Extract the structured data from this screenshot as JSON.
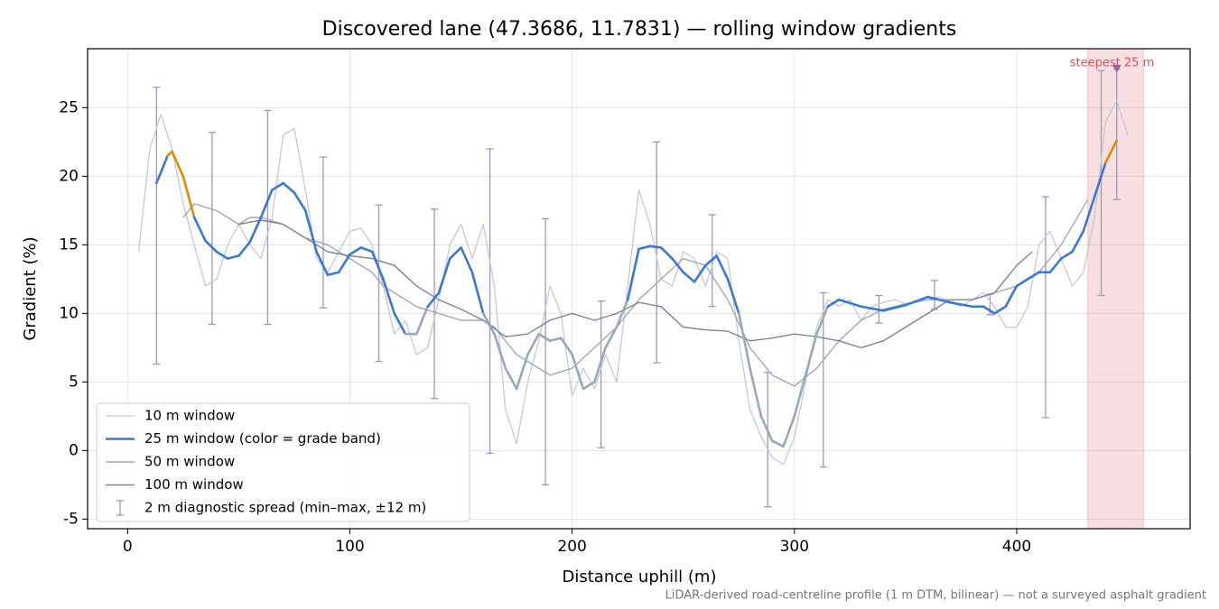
{
  "chart_data": {
    "type": "line",
    "title": "Discovered lane (47.3686, 11.7831) — rolling window gradients",
    "xlabel": "Distance uphill (m)",
    "ylabel": "Gradient (%)",
    "footnote": "LiDAR-derived road-centreline profile (1 m DTM, bilinear) — not a surveyed asphalt gradient",
    "xlim": [
      -18,
      478
    ],
    "ylim": [
      -5.7,
      29.3
    ],
    "xticks": [
      0,
      100,
      200,
      300,
      400
    ],
    "yticks": [
      -5,
      0,
      5,
      10,
      15,
      20,
      25
    ],
    "grid": true,
    "legend": "lower left",
    "series": [
      {
        "name": "10 m window",
        "color": "#c5c9d3",
        "width": 1.3,
        "x": [
          5,
          10,
          15,
          20,
          25,
          30,
          35,
          40,
          45,
          50,
          55,
          60,
          65,
          70,
          75,
          80,
          85,
          90,
          95,
          100,
          105,
          110,
          115,
          120,
          125,
          130,
          135,
          140,
          145,
          150,
          155,
          160,
          165,
          170,
          175,
          180,
          185,
          190,
          195,
          200,
          205,
          210,
          215,
          220,
          225,
          230,
          235,
          240,
          245,
          250,
          255,
          260,
          265,
          270,
          275,
          280,
          285,
          290,
          295,
          300,
          305,
          310,
          315,
          320,
          325,
          330,
          335,
          340,
          345,
          350,
          355,
          360,
          365,
          370,
          375,
          380,
          385,
          390,
          395,
          400,
          405,
          410,
          415,
          420,
          425,
          430,
          435,
          440,
          445,
          450
        ],
        "values": [
          14.5,
          22,
          24.5,
          22,
          18,
          15,
          12,
          12.5,
          15,
          16.5,
          15,
          14,
          17,
          23,
          23.5,
          19,
          14,
          13,
          14.5,
          16,
          16.2,
          15,
          12,
          8.5,
          9.5,
          7,
          7.5,
          11,
          15,
          16.5,
          14,
          16.5,
          12,
          3,
          0.5,
          5,
          8,
          12,
          10,
          4,
          6,
          4.5,
          7,
          5,
          12,
          19,
          16.5,
          12.5,
          12,
          14.5,
          14,
          12,
          14.5,
          14,
          8,
          3,
          1,
          -0.5,
          -1,
          1,
          5,
          9,
          11,
          10.5,
          11,
          9.5,
          10.5,
          10.8,
          11,
          10.7,
          10.8,
          11,
          11.2,
          10.8,
          10.5,
          11,
          11.5,
          10.5,
          9,
          9,
          10.5,
          15,
          16,
          14,
          12,
          13,
          17,
          24,
          25.5,
          23
        ]
      },
      {
        "name": "25 m window (color = grade band)",
        "color": "#3a78d4",
        "width": 2.6,
        "x": [
          13,
          18,
          20,
          25,
          30,
          35,
          40,
          45,
          50,
          55,
          60,
          65,
          70,
          75,
          80,
          85,
          90,
          95,
          100,
          105,
          110,
          115,
          120,
          125,
          130,
          135,
          140,
          145,
          150,
          155,
          160,
          165,
          170,
          175,
          180,
          185,
          190,
          195,
          200,
          205,
          210,
          215,
          220,
          225,
          230,
          235,
          240,
          245,
          250,
          255,
          260,
          265,
          270,
          275,
          280,
          285,
          290,
          295,
          300,
          305,
          310,
          315,
          320,
          330,
          340,
          350,
          360,
          370,
          380,
          385,
          390,
          395,
          400,
          410,
          415,
          420,
          425,
          430,
          435,
          440,
          445
        ],
        "values": [
          19.5,
          21.5,
          21.8,
          20,
          17,
          15.3,
          14.5,
          14,
          14.2,
          15.2,
          17,
          19,
          19.5,
          18.8,
          17.5,
          14.5,
          12.8,
          13,
          14.3,
          14.8,
          14.5,
          12.5,
          10,
          8.5,
          8.5,
          10.5,
          11.5,
          14,
          14.8,
          13,
          10,
          8.5,
          6,
          4.5,
          7,
          8.5,
          8,
          8.2,
          7,
          4.5,
          5,
          7.5,
          9,
          11,
          14.7,
          14.9,
          14.8,
          14,
          13,
          12.3,
          13.5,
          14.2,
          12.5,
          10,
          6,
          2.5,
          0.7,
          0.3,
          2.5,
          5.5,
          8.5,
          10.5,
          11,
          10.5,
          10.2,
          10.6,
          11.2,
          10.8,
          10.5,
          10.5,
          10,
          10.5,
          12,
          13,
          13,
          14,
          14.5,
          16,
          18.5,
          21,
          22.6
        ],
        "colors": [
          "#3a78d4",
          "#e08a00",
          "#e08a00",
          "#e08a00",
          "#3a78d4",
          "#3a78d4",
          "#3a78d4",
          "#3a78d4",
          "#3a78d4",
          "#3a78d4",
          "#3a78d4",
          "#3a78d4",
          "#3a78d4",
          "#3a78d4",
          "#3a78d4",
          "#3a78d4",
          "#3a78d4",
          "#3a78d4",
          "#3a78d4",
          "#3a78d4",
          "#3a78d4",
          "#3a78d4",
          "#3a78d4",
          "#9aa8b8",
          "#9aa8b8",
          "#3a78d4",
          "#3a78d4",
          "#3a78d4",
          "#3a78d4",
          "#3a78d4",
          "#9aa8b8",
          "#9aa8b8",
          "#9aa8b8",
          "#9aa8b8",
          "#9aa8b8",
          "#9aa8b8",
          "#9aa8b8",
          "#9aa8b8",
          "#9aa8b8",
          "#9aa8b8",
          "#9aa8b8",
          "#9aa8b8",
          "#9aa8b8",
          "#3a78d4",
          "#3a78d4",
          "#3a78d4",
          "#3a78d4",
          "#3a78d4",
          "#3a78d4",
          "#3a78d4",
          "#3a78d4",
          "#3a78d4",
          "#3a78d4",
          "#9aa8b8",
          "#9aa8b8",
          "#9aa8b8",
          "#9aa8b8",
          "#9aa8b8",
          "#9aa8b8",
          "#9aa8b8",
          "#9aa8b8",
          "#3a78d4",
          "#3a78d4",
          "#3a78d4",
          "#3a78d4",
          "#3a78d4",
          "#3a78d4",
          "#3a78d4",
          "#3a78d4",
          "#3a78d4",
          "#3a78d4",
          "#3a78d4",
          "#3a78d4",
          "#3a78d4",
          "#3a78d4",
          "#3a78d4",
          "#3a78d4",
          "#3a78d4",
          "#3a78d4",
          "#e08a00",
          "#e08a00"
        ]
      },
      {
        "name": "50 m window",
        "color": "#a3a8b8",
        "width": 1.4,
        "x": [
          25,
          30,
          40,
          50,
          55,
          60,
          70,
          80,
          90,
          100,
          110,
          115,
          120,
          130,
          140,
          150,
          160,
          165,
          170,
          175,
          180,
          185,
          190,
          200,
          210,
          220,
          230,
          240,
          250,
          260,
          270,
          280,
          290,
          300,
          310,
          320,
          330,
          340,
          350,
          360,
          370,
          380,
          390,
          400,
          410,
          420,
          432
        ],
        "values": [
          17,
          18,
          17.5,
          16.5,
          17,
          17,
          16.5,
          15.5,
          15,
          14,
          13,
          12,
          11.5,
          10.5,
          10,
          9.5,
          9.5,
          9,
          8,
          7,
          6.5,
          6,
          5.5,
          6,
          7.5,
          9,
          11,
          12.5,
          14,
          13.5,
          11,
          7.5,
          5.5,
          4.7,
          6,
          8,
          9.5,
          10.3,
          10.7,
          11,
          11,
          11,
          11.5,
          12,
          13,
          15,
          18.3
        ]
      },
      {
        "name": "100 m window",
        "color": "#7f8594",
        "width": 1.4,
        "x": [
          50,
          60,
          70,
          80,
          90,
          100,
          110,
          120,
          130,
          140,
          150,
          160,
          170,
          180,
          190,
          200,
          210,
          220,
          230,
          240,
          250,
          260,
          270,
          280,
          290,
          300,
          310,
          320,
          330,
          340,
          350,
          360,
          370,
          380,
          390,
          400,
          407
        ],
        "values": [
          16.5,
          16.8,
          16.5,
          15.5,
          14.5,
          14.2,
          14,
          13.5,
          12,
          11,
          10.3,
          9.5,
          8.3,
          8.5,
          9.5,
          10,
          9.5,
          10,
          10.8,
          10.5,
          9,
          8.8,
          8.7,
          8,
          8.2,
          8.5,
          8.3,
          8,
          7.5,
          8,
          9,
          10,
          11,
          11,
          11.5,
          13.5,
          14.5
        ]
      }
    ],
    "errorbars": {
      "name": "2 m diagnostic spread (min–max, ±12 m)",
      "color": "#9c98b8",
      "x": [
        13,
        38,
        63,
        88,
        113,
        138,
        163,
        188,
        213,
        238,
        263,
        288,
        313,
        338,
        363,
        388,
        413,
        438,
        445
      ],
      "low": [
        6.3,
        9.2,
        9.2,
        10.4,
        6.5,
        3.8,
        -0.2,
        -2.5,
        0.2,
        6.4,
        10.5,
        -4.1,
        -1.2,
        9.3,
        10.3,
        9.9,
        2.4,
        11.3,
        18.3
      ],
      "high": [
        26.5,
        23.2,
        24.8,
        21.4,
        17.9,
        17.6,
        22,
        16.9,
        10.9,
        22.5,
        17.2,
        5.7,
        11.5,
        11.3,
        12.4,
        11.4,
        18.5,
        27.7,
        27.8
      ]
    },
    "highlight": {
      "label": "steepest 25 m",
      "x": [
        432,
        457
      ],
      "color": "#d9525e",
      "marker_x": 445,
      "marker_y": 27.8
    }
  }
}
